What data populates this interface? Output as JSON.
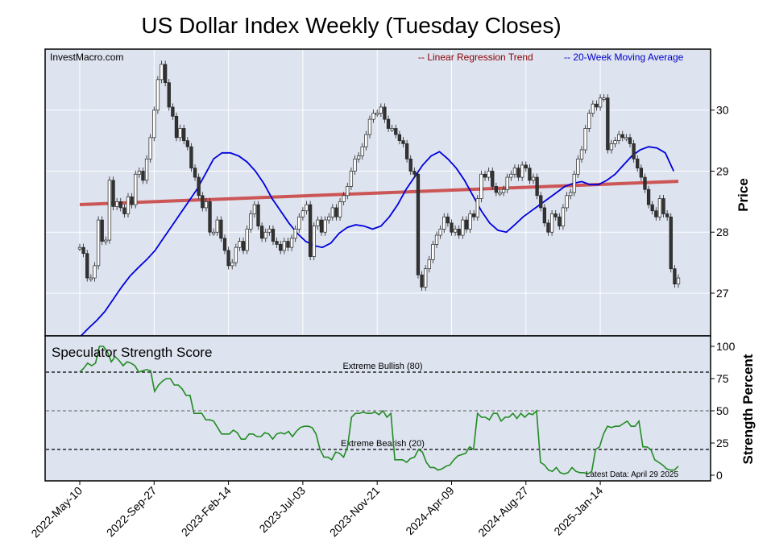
{
  "chart_data": [
    {
      "type": "candlestick",
      "title": "US Dollar Index Weekly (Tuesday Closes)",
      "watermark": "InvestMacro.com",
      "ylabel": "Price",
      "ylim": [
        26.3,
        31.0
      ],
      "yticks": [
        27,
        28,
        29,
        30
      ],
      "x_tick_labels": [
        "2022-May-10",
        "2022-Sep-27",
        "2023-Feb-14",
        "2023-Jul-03",
        "2023-Nov-21",
        "2024-Apr-09",
        "2024-Aug-27",
        "2025-Jan-14"
      ],
      "x_tick_weeks": [
        0,
        20,
        40,
        60,
        80,
        100,
        120,
        140
      ],
      "legend": [
        {
          "label": "-- Linear Regression Trend",
          "color": "#8b0000"
        },
        {
          "label": "-- 20-Week Moving Average",
          "color": "#0000cc"
        }
      ],
      "series": [
        {
          "name": "Price",
          "values": [
            27.75,
            27.65,
            27.25,
            27.25,
            27.45,
            28.2,
            27.85,
            27.87,
            28.85,
            28.42,
            28.5,
            28.4,
            28.3,
            28.58,
            28.45,
            28.95,
            29.0,
            28.85,
            29.2,
            29.55,
            30.0,
            30.5,
            30.75,
            30.45,
            30.05,
            29.9,
            29.55,
            29.7,
            29.5,
            29.4,
            29.05,
            28.9,
            28.6,
            28.4,
            28.5,
            28.0,
            28.0,
            28.2,
            27.9,
            27.7,
            27.45,
            27.5,
            27.75,
            27.85,
            27.7,
            28.05,
            28.3,
            28.45,
            28.1,
            27.9,
            28.0,
            28.05,
            27.85,
            27.8,
            27.7,
            27.85,
            27.75,
            27.9,
            28.05,
            28.25,
            28.35,
            28.45,
            27.6,
            28.1,
            28.2,
            28.0,
            28.2,
            28.25,
            28.4,
            28.25,
            28.5,
            28.6,
            28.75,
            29.0,
            29.2,
            29.25,
            29.4,
            29.6,
            29.85,
            29.95,
            29.95,
            30.05,
            29.85,
            29.7,
            29.7,
            29.6,
            29.5,
            29.45,
            29.2,
            29.0,
            28.95,
            27.3,
            27.1,
            27.4,
            27.55,
            27.8,
            27.95,
            28.05,
            28.25,
            28.15,
            28.0,
            28.05,
            27.95,
            28.2,
            28.05,
            28.3,
            28.25,
            28.55,
            28.95,
            28.9,
            29.0,
            28.75,
            28.65,
            28.65,
            28.7,
            28.9,
            28.95,
            29.05,
            28.9,
            29.1,
            29.05,
            28.85,
            28.9,
            28.6,
            28.4,
            28.15,
            28.0,
            28.3,
            28.25,
            28.1,
            28.4,
            28.6,
            28.65,
            28.95,
            29.2,
            29.35,
            29.7,
            29.95,
            30.1,
            30.05,
            30.2,
            30.2,
            29.35,
            29.45,
            29.5,
            29.6,
            29.55,
            29.55,
            29.45,
            29.2,
            29.05,
            28.9,
            28.7,
            28.45,
            28.35,
            28.25,
            28.55,
            28.3,
            28.25,
            27.4,
            27.15,
            27.25
          ]
        },
        {
          "name": "20-Week Moving Average",
          "values": [
            26.28,
            26.42,
            26.55,
            26.7,
            26.9,
            27.1,
            27.28,
            27.42,
            27.55,
            27.7,
            27.9,
            28.1,
            28.3,
            28.5,
            28.7,
            28.95,
            29.2,
            29.3,
            29.3,
            29.25,
            29.15,
            29.0,
            28.8,
            28.55,
            28.35,
            28.15,
            27.98,
            27.85,
            27.78,
            27.75,
            27.82,
            27.98,
            28.08,
            28.12,
            28.1,
            28.05,
            28.1,
            28.25,
            28.45,
            28.7,
            28.9,
            29.1,
            29.25,
            29.32,
            29.2,
            29.05,
            28.85,
            28.6,
            28.35,
            28.15,
            28.03,
            28.0,
            28.12,
            28.25,
            28.35,
            28.45,
            28.55,
            28.65,
            28.75,
            28.8,
            28.83,
            28.78,
            28.78,
            28.85,
            28.95,
            29.1,
            29.25,
            29.35,
            29.4,
            29.38,
            29.3,
            29.0
          ],
          "x_weeks_step": 2.25
        }
      ]
    },
    {
      "type": "line",
      "title": "Speculator Strength Score",
      "ylabel": "Strength Percent",
      "ylim": [
        0,
        100
      ],
      "yticks": [
        0,
        25,
        50,
        75,
        100
      ],
      "reference_lines": [
        {
          "value": 80,
          "label": "Extreme Bullish (80)"
        },
        {
          "value": 50,
          "label": ""
        },
        {
          "value": 20,
          "label": "Extreme Bearish (20)"
        }
      ],
      "annotation": "Latest Data: April 29 2025",
      "series": [
        {
          "name": "Strength Score",
          "values": [
            80,
            83,
            87,
            85,
            87,
            100,
            100,
            96,
            88,
            92,
            89,
            85,
            88,
            87,
            85,
            80,
            81,
            82,
            81,
            65,
            70,
            73,
            75,
            75,
            70,
            70,
            67,
            62,
            62,
            48,
            48,
            48,
            43,
            43,
            42,
            37,
            32,
            32,
            32,
            35,
            33,
            28,
            28,
            32,
            32,
            30,
            30,
            33,
            32,
            28,
            32,
            33,
            32,
            34,
            30,
            34,
            37,
            38,
            38,
            37,
            32,
            20,
            14,
            14,
            12,
            18,
            17,
            14,
            22,
            45,
            48,
            48,
            49,
            48,
            48,
            49,
            47,
            50,
            45,
            48,
            12,
            12,
            12,
            10,
            13,
            14,
            20,
            18,
            10,
            6,
            6,
            4,
            5,
            7,
            8,
            12,
            15,
            16,
            17,
            22,
            20,
            48,
            45,
            45,
            43,
            48,
            48,
            42,
            45,
            45,
            48,
            44,
            48,
            45,
            48,
            47,
            50,
            10,
            8,
            4,
            3,
            6,
            2,
            1,
            2,
            6,
            3,
            2,
            2,
            1,
            3,
            20,
            22,
            32,
            38,
            37,
            38,
            38,
            40,
            42,
            38,
            38,
            42,
            22,
            22,
            20,
            12,
            10,
            8,
            5,
            4,
            4,
            7
          ]
        }
      ]
    }
  ],
  "colors": {
    "panel_bg": "#dde3ef",
    "ma_line": "#0000dd",
    "trend_line": "#cc5555",
    "score_line": "#228b22",
    "candle_up": "#ffffff",
    "candle_down": "#333333"
  }
}
